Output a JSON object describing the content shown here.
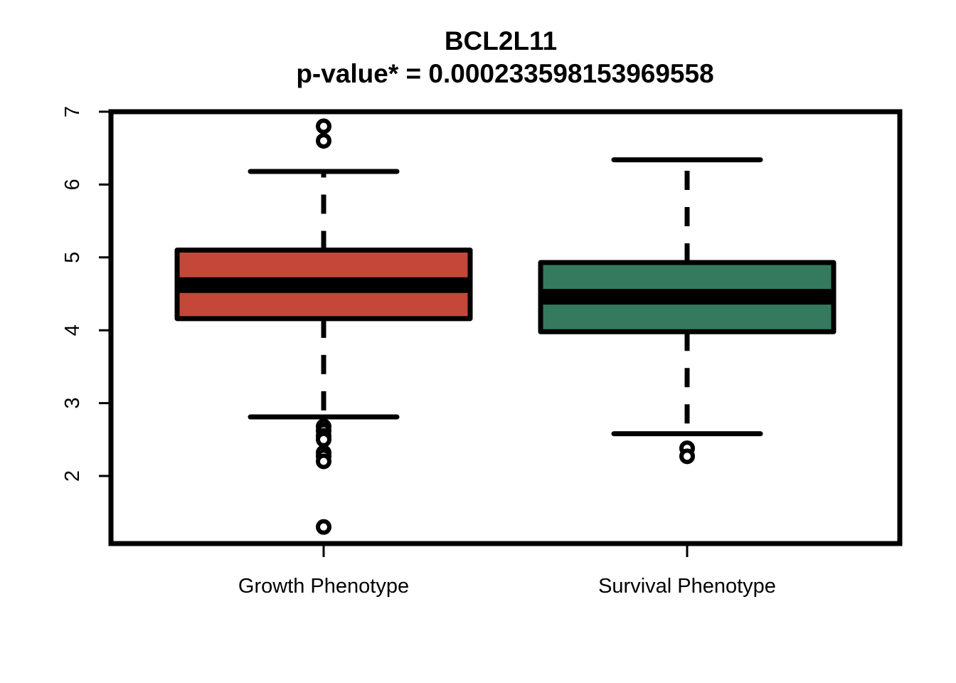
{
  "chart_data": {
    "type": "box",
    "title": "BCL2L11",
    "subtitle": "p-value* = 0.000233598153969558",
    "xlabel": "",
    "ylabel": "",
    "ylim": [
      1.1,
      7.0
    ],
    "yticks": [
      "2",
      "3",
      "4",
      "5",
      "6",
      "7"
    ],
    "grid": false,
    "categories": [
      "Growth Phenotype",
      "Survival Phenotype"
    ],
    "boxes": [
      {
        "category": "Growth Phenotype",
        "color": "#C4473A",
        "whisker_low": 2.81,
        "q1": 4.16,
        "median": 4.62,
        "q3": 5.1,
        "whisker_high": 6.18,
        "outliers": [
          6.8,
          6.6,
          2.68,
          2.62,
          2.55,
          2.5,
          2.32,
          2.27,
          2.2,
          1.3
        ]
      },
      {
        "category": "Survival Phenotype",
        "color": "#357A5F",
        "whisker_low": 2.58,
        "q1": 3.98,
        "median": 4.46,
        "q3": 4.93,
        "whisker_high": 6.34,
        "outliers": [
          2.38,
          2.27
        ]
      }
    ]
  }
}
